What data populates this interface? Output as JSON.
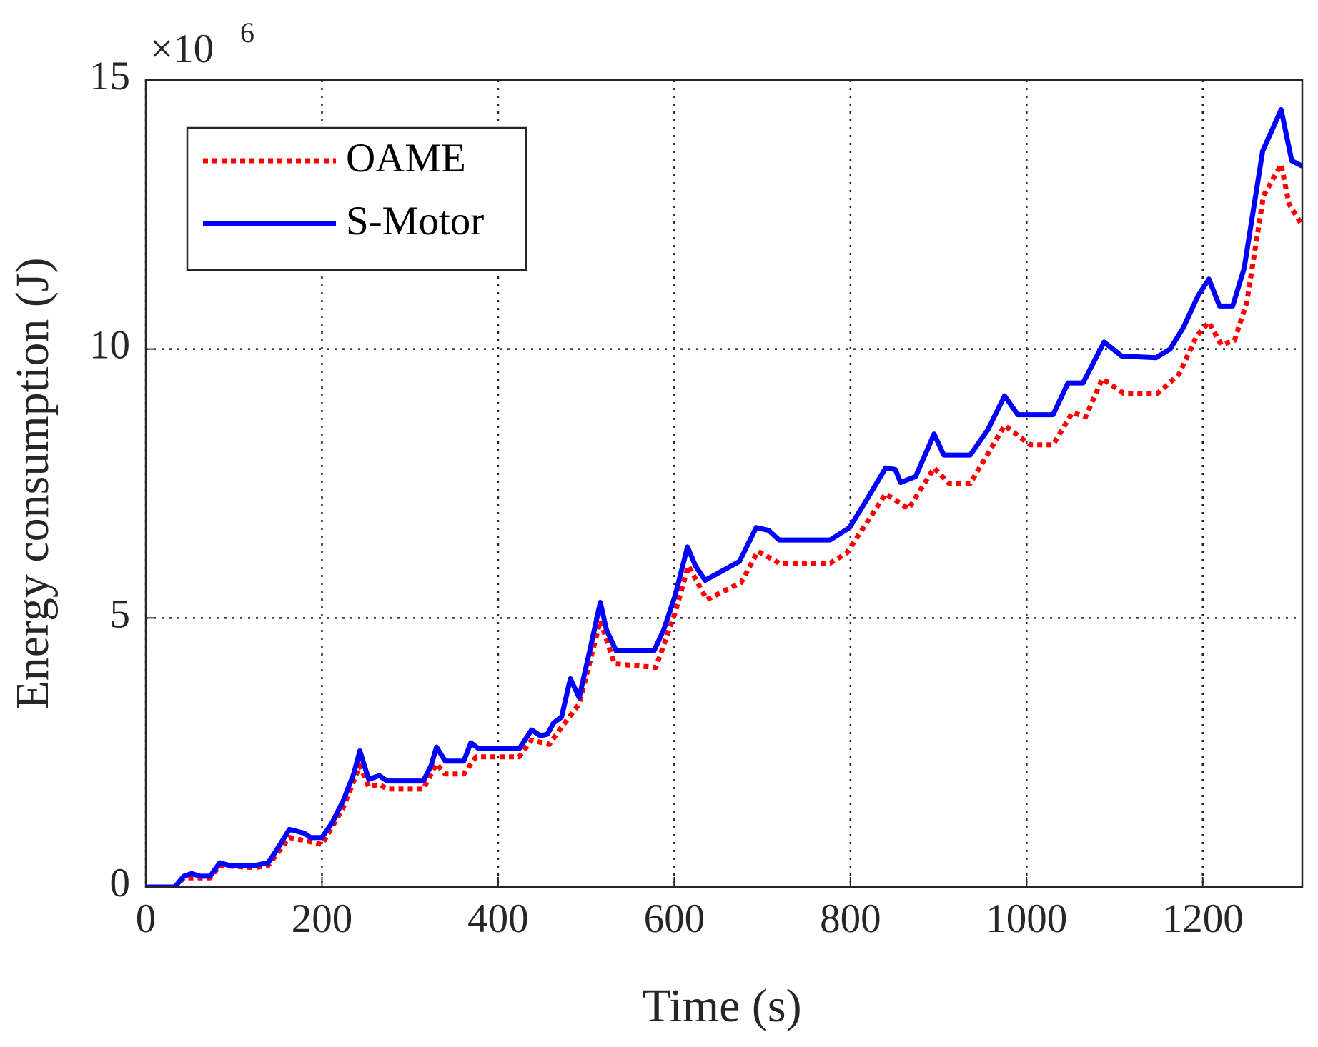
{
  "chart_data": {
    "type": "line",
    "xlabel": "Time (s)",
    "ylabel": "Energy consumption (J)",
    "y_multiplier": {
      "base": "×10",
      "exponent": "6"
    },
    "xlim": [
      0,
      1313
    ],
    "xticks": [
      0,
      200,
      400,
      600,
      800,
      1000,
      1200
    ],
    "ylim": [
      0,
      15
    ],
    "yticks": [
      0,
      5,
      10,
      15
    ],
    "grid": true,
    "legend": "upper-left",
    "series": [
      {
        "name": "OAME",
        "color": "#ff0000",
        "dash": "dotted",
        "x": [
          0,
          33,
          43,
          62,
          73,
          84,
          124,
          139,
          163,
          187,
          200,
          224,
          243,
          253,
          265,
          274,
          315,
          330,
          340,
          361,
          375,
          424,
          438,
          458,
          472,
          492,
          516,
          532,
          579,
          601,
          616,
          637,
          676,
          695,
          719,
          777,
          796,
          840,
          854,
          866,
          895,
          912,
          936,
          975,
          1004,
          1030,
          1052,
          1067,
          1086,
          1110,
          1149,
          1173,
          1193,
          1207,
          1221,
          1236,
          1250,
          1269,
          1289,
          1298,
          1313
        ],
        "values": [
          0,
          0,
          0.17,
          0.17,
          0.17,
          0.4,
          0.36,
          0.4,
          0.92,
          0.84,
          0.79,
          1.47,
          2.26,
          1.86,
          1.91,
          1.82,
          1.82,
          2.29,
          2.1,
          2.1,
          2.42,
          2.42,
          2.73,
          2.65,
          2.97,
          3.4,
          4.95,
          4.15,
          4.08,
          5.1,
          5.97,
          5.34,
          5.66,
          6.24,
          6.02,
          6.02,
          6.21,
          7.31,
          7.16,
          7.03,
          7.79,
          7.5,
          7.5,
          8.58,
          8.22,
          8.22,
          8.82,
          8.74,
          9.45,
          9.18,
          9.18,
          9.53,
          10.24,
          10.5,
          10.08,
          10.16,
          10.87,
          12.85,
          13.43,
          12.69,
          12.3
        ]
      },
      {
        "name": "S-Motor",
        "color": "#0000ff",
        "dash": "solid",
        "x": [
          0,
          33,
          43,
          52,
          62,
          73,
          84,
          95,
          124,
          139,
          149,
          163,
          180,
          187,
          200,
          211,
          224,
          236,
          243,
          253,
          265,
          274,
          315,
          324,
          330,
          340,
          361,
          369,
          378,
          424,
          438,
          448,
          456,
          463,
          472,
          482,
          492,
          504,
          516,
          523,
          534,
          577,
          588,
          601,
          615,
          624,
          635,
          674,
          693,
          707,
          719,
          777,
          799,
          820,
          840,
          851,
          857,
          874,
          895,
          906,
          936,
          956,
          975,
          990,
          1030,
          1047,
          1064,
          1088,
          1108,
          1147,
          1163,
          1178,
          1195,
          1207,
          1219,
          1234,
          1247,
          1268,
          1289,
          1301,
          1313
        ],
        "values": [
          0,
          0,
          0.2,
          0.25,
          0.2,
          0.2,
          0.45,
          0.4,
          0.4,
          0.45,
          0.7,
          1.07,
          1.0,
          0.92,
          0.92,
          1.18,
          1.6,
          2.1,
          2.53,
          2.0,
          2.07,
          1.97,
          1.97,
          2.26,
          2.6,
          2.34,
          2.34,
          2.68,
          2.57,
          2.57,
          2.92,
          2.81,
          2.84,
          3.05,
          3.16,
          3.87,
          3.52,
          4.39,
          5.29,
          4.78,
          4.39,
          4.39,
          4.78,
          5.42,
          6.32,
          5.97,
          5.7,
          6.05,
          6.68,
          6.63,
          6.45,
          6.45,
          6.68,
          7.24,
          7.79,
          7.76,
          7.52,
          7.63,
          8.42,
          8.03,
          8.03,
          8.5,
          9.13,
          8.78,
          8.78,
          9.37,
          9.37,
          10.13,
          9.87,
          9.84,
          10.0,
          10.4,
          11.0,
          11.3,
          10.8,
          10.8,
          11.5,
          13.68,
          14.45,
          13.5,
          13.4
        ]
      }
    ]
  }
}
